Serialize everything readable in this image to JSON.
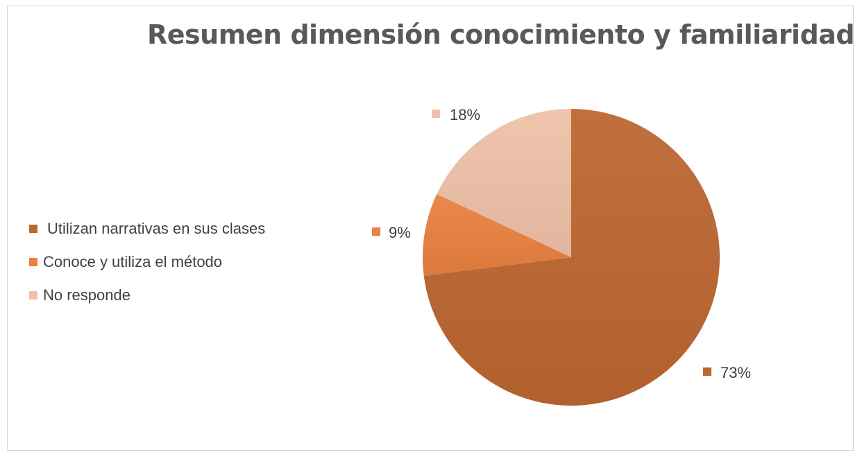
{
  "chart_data": {
    "type": "pie",
    "title": "Resumen dimensión conocimiento y familiaridad",
    "categories": [
      "Utilizan narrativas en sus clases",
      "Conoce y utiliza el método",
      "No responde"
    ],
    "values": [
      73,
      9,
      18
    ],
    "data_labels": [
      "73%",
      "9%",
      "18%"
    ],
    "colors": [
      "#BC6631",
      "#E9813F",
      "#EFC1A8"
    ],
    "legend": "left",
    "start_angle_deg": 0,
    "direction": "clockwise"
  }
}
